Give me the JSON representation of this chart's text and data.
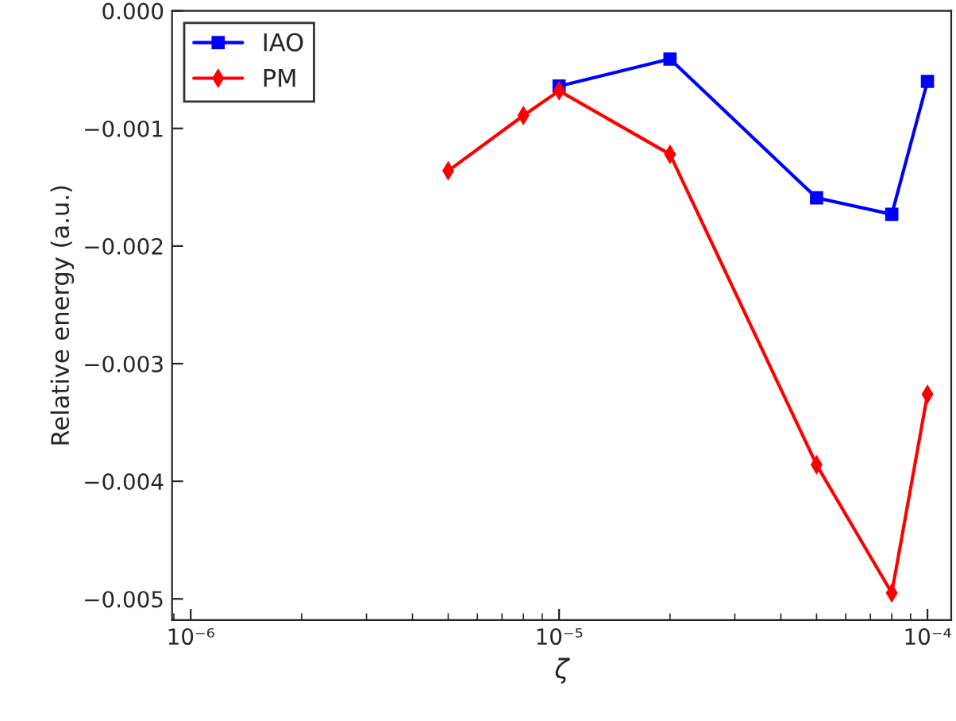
{
  "chart_data": {
    "type": "line",
    "xlabel": "ζ",
    "ylabel": "Relative energy (a.u.)",
    "log": "x",
    "xlim": [
      8.9e-07,
      0.000116
    ],
    "ylim": [
      -0.00518,
      0
    ],
    "xticks": [
      {
        "value": 1e-06,
        "label": "10⁻⁶"
      },
      {
        "value": 1e-05,
        "label": "10⁻⁵"
      },
      {
        "value": 0.0001,
        "label": "10⁻⁴"
      }
    ],
    "yticks": [
      {
        "value": -0.005,
        "label": "−0.005"
      },
      {
        "value": -0.004,
        "label": "−0.004"
      },
      {
        "value": -0.003,
        "label": "−0.003"
      },
      {
        "value": -0.002,
        "label": "−0.002"
      },
      {
        "value": -0.001,
        "label": "−0.001"
      },
      {
        "value": 0,
        "label": "0.000"
      }
    ],
    "grid": false,
    "legend": "top left",
    "series": [
      {
        "name": "IAO",
        "color": "#0000ff",
        "marker": "square",
        "x": [
          1e-05,
          2e-05,
          5e-05,
          8e-05,
          0.0001
        ],
        "values": [
          -0.00064,
          -0.00041,
          -0.00159,
          -0.00173,
          -0.0006
        ]
      },
      {
        "name": "PM",
        "color": "#ff0000",
        "marker": "diamond",
        "x": [
          5e-06,
          8e-06,
          1e-05,
          2e-05,
          5e-05,
          8e-05,
          0.0001
        ],
        "values": [
          -0.00136,
          -0.00089,
          -0.00068,
          -0.00122,
          -0.00386,
          -0.00495,
          -0.00326
        ]
      }
    ]
  }
}
